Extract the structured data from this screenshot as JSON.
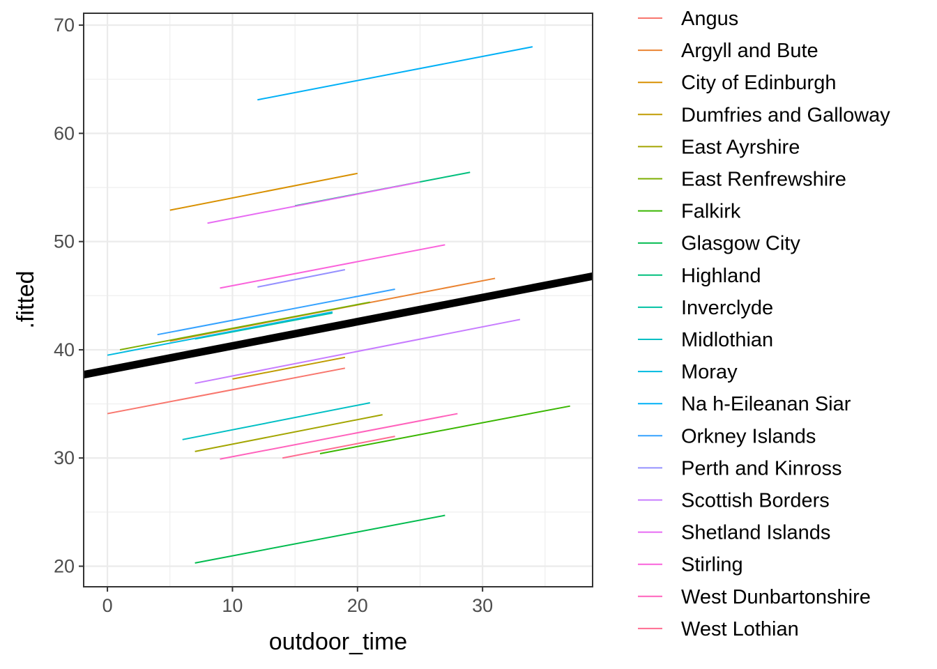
{
  "chart_data": {
    "type": "line",
    "xlabel": "outdoor_time",
    "ylabel": ".fitted",
    "xlim": [
      -1.9,
      38.8
    ],
    "ylim": [
      18.1,
      71.1
    ],
    "x_ticks": [
      0,
      10,
      20,
      30
    ],
    "y_ticks": [
      20,
      30,
      40,
      50,
      60,
      70
    ],
    "grid": true,
    "legend_position": "right",
    "overall_line": {
      "x": [
        -1.9,
        38.8
      ],
      "y": [
        37.7,
        46.8
      ],
      "color": "#000000"
    },
    "series": [
      {
        "name": "Angus",
        "color": "#F8766D",
        "x": [
          0,
          19
        ],
        "y": [
          34.1,
          38.3
        ]
      },
      {
        "name": "Argyll and Bute",
        "color": "#EA8331",
        "x": [
          5,
          31
        ],
        "y": [
          40.8,
          46.6
        ]
      },
      {
        "name": "City of Edinburgh",
        "color": "#D89000",
        "x": [
          5,
          20
        ],
        "y": [
          52.9,
          56.3
        ]
      },
      {
        "name": "Dumfries and Galloway",
        "color": "#C09B00",
        "x": [
          10,
          19
        ],
        "y": [
          37.3,
          39.3
        ]
      },
      {
        "name": "East Ayrshire",
        "color": "#A3A500",
        "x": [
          7,
          22
        ],
        "y": [
          30.6,
          34.0
        ]
      },
      {
        "name": "East Renfrewshire",
        "color": "#7CAE00",
        "x": [
          1,
          21
        ],
        "y": [
          40.0,
          44.4
        ]
      },
      {
        "name": "Falkirk",
        "color": "#39B600",
        "x": [
          17,
          37
        ],
        "y": [
          30.4,
          34.8
        ]
      },
      {
        "name": "Glasgow City",
        "color": "#00BB4E",
        "x": [
          7,
          27
        ],
        "y": [
          20.3,
          24.7
        ]
      },
      {
        "name": "Highland",
        "color": "#00BF7D",
        "x": [
          15,
          29
        ],
        "y": [
          53.3,
          56.4
        ]
      },
      {
        "name": "Inverclyde",
        "color": "#00C1A3",
        "x": [
          7,
          18
        ],
        "y": [
          41.0,
          43.4
        ]
      },
      {
        "name": "Midlothian",
        "color": "#00BFC4",
        "x": [
          6,
          21
        ],
        "y": [
          31.7,
          35.1
        ]
      },
      {
        "name": "Moray",
        "color": "#00BAE0",
        "x": [
          0,
          18
        ],
        "y": [
          39.5,
          43.5
        ]
      },
      {
        "name": "Na h-Eileanan Siar",
        "color": "#00B0F6",
        "x": [
          12,
          34
        ],
        "y": [
          63.1,
          68.0
        ]
      },
      {
        "name": "Orkney Islands",
        "color": "#35A2FF",
        "x": [
          4,
          23
        ],
        "y": [
          41.4,
          45.6
        ]
      },
      {
        "name": "Perth and Kinross",
        "color": "#9590FF",
        "x": [
          12,
          19
        ],
        "y": [
          45.8,
          47.4
        ]
      },
      {
        "name": "Scottish Borders",
        "color": "#C77CFF",
        "x": [
          7,
          33
        ],
        "y": [
          36.9,
          42.8
        ]
      },
      {
        "name": "Shetland Islands",
        "color": "#E76BF3",
        "x": [
          8,
          25
        ],
        "y": [
          51.7,
          55.5
        ]
      },
      {
        "name": "Stirling",
        "color": "#FA62DB",
        "x": [
          9,
          27
        ],
        "y": [
          45.7,
          49.7
        ]
      },
      {
        "name": "West Dunbartonshire",
        "color": "#FF62BC",
        "x": [
          9,
          28
        ],
        "y": [
          29.9,
          34.1
        ]
      },
      {
        "name": "West Lothian",
        "color": "#FF6C91",
        "x": [
          14,
          23
        ],
        "y": [
          30.0,
          32.0
        ]
      }
    ]
  }
}
